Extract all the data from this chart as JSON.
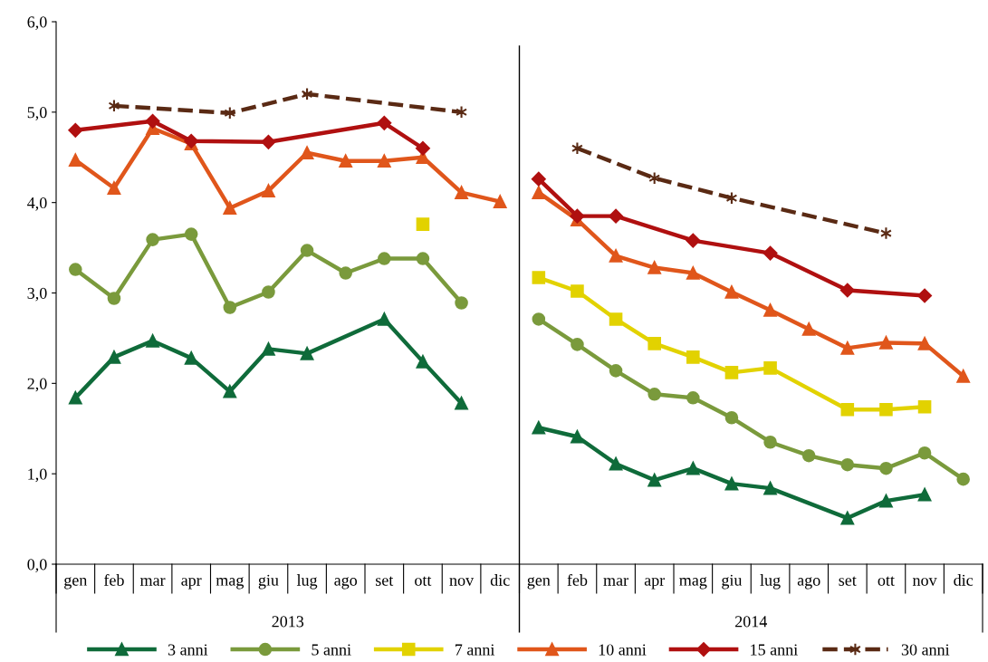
{
  "chart_data": {
    "type": "line",
    "categories": [
      "gen",
      "feb",
      "mar",
      "apr",
      "mag",
      "giu",
      "lug",
      "ago",
      "set",
      "ott",
      "nov",
      "dic",
      "gen",
      "feb",
      "mar",
      "apr",
      "mag",
      "giu",
      "lug",
      "ago",
      "set",
      "ott",
      "nov",
      "dic"
    ],
    "series": [
      {
        "name": "3 anni",
        "color": "#0f6b3a",
        "marker": "triangle",
        "line_style": "solid",
        "values": [
          1.84,
          2.29,
          2.47,
          2.28,
          1.91,
          2.38,
          2.33,
          null,
          2.71,
          2.24,
          1.78,
          null,
          1.51,
          1.41,
          1.11,
          0.93,
          1.06,
          0.89,
          0.84,
          null,
          0.51,
          0.7,
          0.77,
          null
        ]
      },
      {
        "name": "5 anni",
        "color": "#7a9a3c",
        "marker": "circle",
        "line_style": "solid",
        "values": [
          3.26,
          2.94,
          3.59,
          3.65,
          2.84,
          3.01,
          3.47,
          3.22,
          3.38,
          3.38,
          2.89,
          null,
          2.71,
          2.43,
          2.14,
          1.88,
          1.84,
          1.62,
          1.35,
          1.2,
          1.1,
          1.06,
          1.23,
          0.94
        ]
      },
      {
        "name": "7 anni",
        "color": "#e2d200",
        "marker": "square",
        "line_style": "solid",
        "values": [
          null,
          null,
          null,
          null,
          null,
          null,
          null,
          null,
          null,
          3.76,
          null,
          null,
          3.17,
          3.02,
          2.71,
          2.44,
          2.29,
          2.12,
          2.17,
          null,
          1.71,
          1.71,
          1.74,
          null
        ]
      },
      {
        "name": "10 anni",
        "color": "#e0561b",
        "marker": "triangle",
        "line_style": "solid",
        "values": [
          4.47,
          4.16,
          4.82,
          4.65,
          3.94,
          4.13,
          4.55,
          4.46,
          4.46,
          4.5,
          4.11,
          4.01,
          4.11,
          3.81,
          3.41,
          3.28,
          3.22,
          3.01,
          2.81,
          2.6,
          2.39,
          2.45,
          2.44,
          2.08
        ]
      },
      {
        "name": "15 anni",
        "color": "#b01010",
        "marker": "diamond",
        "line_style": "solid",
        "values": [
          4.8,
          null,
          4.9,
          4.68,
          null,
          4.67,
          null,
          null,
          4.88,
          4.6,
          null,
          null,
          4.26,
          3.85,
          3.85,
          null,
          3.58,
          null,
          3.44,
          null,
          3.03,
          null,
          2.97,
          null
        ]
      },
      {
        "name": "30 anni",
        "color": "#5a2a14",
        "marker": "cross",
        "line_style": "dashed",
        "values": [
          null,
          5.07,
          null,
          null,
          4.99,
          null,
          5.2,
          null,
          null,
          null,
          5.0,
          null,
          null,
          4.6,
          null,
          4.27,
          null,
          4.05,
          null,
          null,
          null,
          3.66,
          null,
          null
        ]
      }
    ],
    "ylim": [
      0,
      6
    ],
    "yticks": [
      {
        "value": 0,
        "label": "0,0"
      },
      {
        "value": 1,
        "label": "1,0"
      },
      {
        "value": 2,
        "label": "2,0"
      },
      {
        "value": 3,
        "label": "3,0"
      },
      {
        "value": 4,
        "label": "4,0"
      },
      {
        "value": 5,
        "label": "5,0"
      },
      {
        "value": 6,
        "label": "6,0"
      }
    ],
    "annotations": [
      "2013",
      "2014"
    ],
    "legend": "bottom",
    "grid": false
  }
}
